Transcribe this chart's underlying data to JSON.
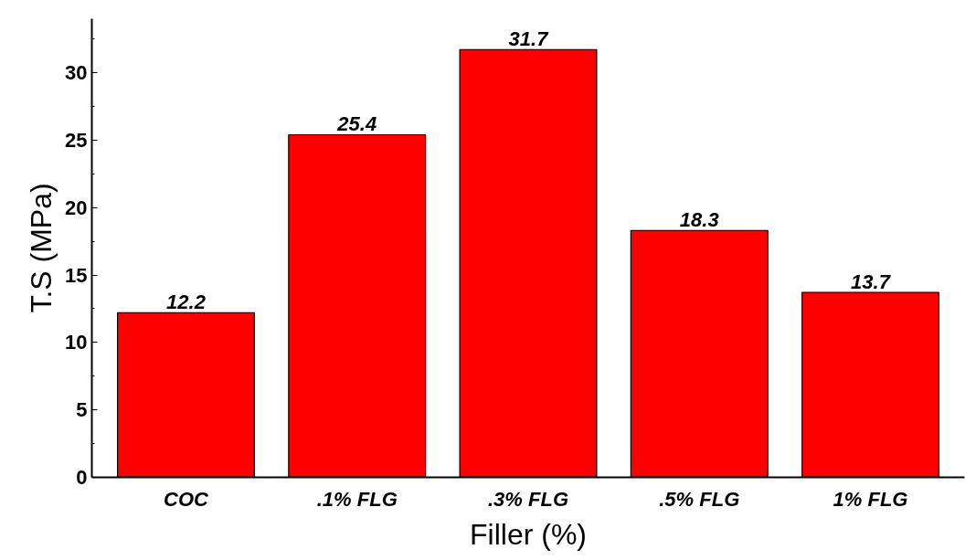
{
  "chart_data": {
    "type": "bar",
    "xlabel": "Filler (%)",
    "ylabel": "T.S (MPa)",
    "categories": [
      "COC",
      ".1% FLG",
      ".3% FLG",
      ".5% FLG",
      "1% FLG"
    ],
    "values": [
      12.2,
      25.4,
      31.7,
      18.3,
      13.7
    ],
    "color": "#ff0000",
    "ylim": [
      0,
      34
    ],
    "yticks": [
      0,
      5,
      10,
      15,
      20,
      25,
      30
    ],
    "grid": false,
    "data_labels": true
  }
}
